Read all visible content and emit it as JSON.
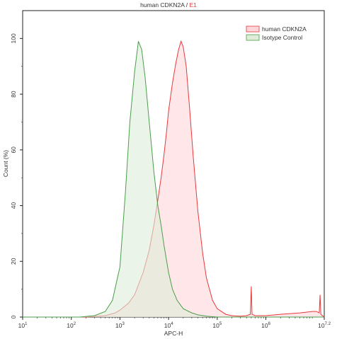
{
  "chart_data": {
    "type": "area",
    "title_main": "human CDKN2A / ",
    "title_accent": "E1",
    "xlabel": "APC-H",
    "ylabel": "Count (%)",
    "xscale": "log",
    "xlim": [
      10,
      15848932
    ],
    "ylim": [
      0,
      110
    ],
    "grid": false,
    "legend_position": "top-right",
    "x_ticks": [
      {
        "base": "10",
        "exp": "1",
        "value": 10
      },
      {
        "base": "10",
        "exp": "2",
        "value": 100
      },
      {
        "base": "10",
        "exp": "3",
        "value": 1000
      },
      {
        "base": "10",
        "exp": "4",
        "value": 10000
      },
      {
        "base": "10",
        "exp": "5",
        "value": 100000
      },
      {
        "base": "10",
        "exp": "6",
        "value": 1000000
      },
      {
        "base": "10",
        "exp": "7.2",
        "value": 15848932
      }
    ],
    "y_ticks": [
      {
        "label": "0",
        "value": 0
      },
      {
        "label": "20",
        "value": 20
      },
      {
        "label": "40",
        "value": 40
      },
      {
        "label": "60",
        "value": 60
      },
      {
        "label": "80",
        "value": 80
      },
      {
        "label": "100",
        "value": 100
      }
    ],
    "series": [
      {
        "name": "human CDKN2A",
        "line_color": "#e8393a",
        "fill_color": "#fdd6da",
        "x": [
          10,
          200,
          500,
          800,
          1000,
          1500,
          2000,
          3000,
          4000,
          5000,
          6000,
          7000,
          8000,
          9000,
          10000,
          12000,
          14000,
          16000,
          18000,
          20000,
          23000,
          27000,
          32000,
          40000,
          50000,
          60000,
          80000,
          100000,
          150000,
          200000,
          300000,
          400000,
          480000,
          500000,
          520000,
          600000,
          1000000,
          2000000,
          5000000,
          9000000,
          11000000,
          12500000,
          13000000,
          13500000,
          15848932
        ],
        "y": [
          0,
          0,
          0.5,
          1.5,
          2.5,
          5,
          8,
          16,
          24,
          33,
          42,
          50,
          58,
          66,
          74,
          84,
          91,
          96,
          99,
          97,
          90,
          75,
          58,
          38,
          23,
          14,
          6,
          3,
          1,
          0.5,
          0.3,
          0.5,
          1,
          11,
          1,
          0.5,
          0.5,
          1,
          1.5,
          2,
          2,
          1.5,
          8,
          1,
          0
        ]
      },
      {
        "name": "Isotype Control",
        "line_color": "#4a9e4a",
        "fill_color": "#deecd8",
        "x": [
          10,
          150,
          300,
          500,
          700,
          1000,
          1300,
          1600,
          2000,
          2400,
          2800,
          3300,
          4000,
          5000,
          6000,
          7000,
          8000,
          10000,
          12000,
          15000,
          20000,
          30000,
          40000,
          60000,
          100000,
          15848932
        ],
        "y": [
          0,
          0,
          0.5,
          2,
          6,
          18,
          45,
          70,
          88,
          99,
          96,
          86,
          70,
          52,
          40,
          33,
          26,
          16,
          10,
          6,
          3,
          1.5,
          0.8,
          0.3,
          0,
          0
        ]
      }
    ]
  }
}
